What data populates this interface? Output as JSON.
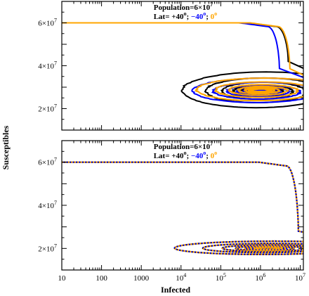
{
  "chart_data": [
    {
      "type": "line",
      "panel": "top",
      "xscale": "log",
      "yscale": "linear",
      "xlim": [
        10,
        12000000
      ],
      "ylim": [
        10000000,
        70000000
      ],
      "annotation": {
        "population_label": "Population=6×10",
        "population_exp": "7",
        "lat_prefix": "Lat=  +40",
        "deg": "o",
        "sep1": ";  ",
        "lat_minus": "−40",
        "sep2": ";  ",
        "lat_zero": "0"
      },
      "series": [
        {
          "name": "+40°",
          "color": "#000000",
          "s0": 60000000,
          "peak": 5000000,
          "center": [
            1000000,
            28000000
          ],
          "spread": 4.2,
          "ampY": 9500000,
          "seed": 1
        },
        {
          "name": "−40°",
          "color": "#0000ff",
          "s0": 60000000,
          "peak": 3000000,
          "center": [
            1000000,
            28000000
          ],
          "spread": 3.6,
          "ampY": 6500000,
          "seed": 2
        },
        {
          "name": "0°",
          "color": "#ffa500",
          "s0": 60000000,
          "peak": 5500000,
          "center": [
            1000000,
            28500000
          ],
          "spread": 3.4,
          "ampY": 6000000,
          "seed": 3
        }
      ]
    },
    {
      "type": "line",
      "panel": "bottom",
      "xscale": "log",
      "yscale": "linear",
      "xlim": [
        10,
        12000000
      ],
      "ylim": [
        10000000,
        70000000
      ],
      "annotation": {
        "population_label": "Population=6×10",
        "population_exp": "7",
        "lat_prefix": "Lat=  +40",
        "deg": "o",
        "sep1": ";  ",
        "lat_minus": "−40",
        "sep2": ";  ",
        "lat_zero": "0"
      },
      "series": [
        {
          "name": "+40°",
          "color": "#000000",
          "s0": 60000000,
          "peak": 9000000,
          "center": [
            1500000,
            20000000
          ],
          "spread": 5.0,
          "ampY": 3500000
        },
        {
          "name": "−40°",
          "color": "#0000ff",
          "s0": 60000000,
          "peak": 9000000,
          "center": [
            1500000,
            20000000
          ],
          "spread": 5.0,
          "ampY": 3500000
        },
        {
          "name": "0°",
          "color": "#ffa500",
          "s0": 60000000,
          "peak": 9000000,
          "center": [
            1500000,
            20000000
          ],
          "spread": 5.0,
          "ampY": 3500000
        }
      ]
    }
  ],
  "x_ticks": [
    {
      "label": "10",
      "value": 10
    },
    {
      "label": "100",
      "value": 100
    },
    {
      "label": "1000",
      "value": 1000
    },
    {
      "label": "10",
      "exp": "4",
      "value": 10000
    },
    {
      "label": "10",
      "exp": "5",
      "value": 100000
    },
    {
      "label": "10",
      "exp": "6",
      "value": 1000000
    },
    {
      "label": "10",
      "exp": "7",
      "value": 10000000
    }
  ],
  "y_ticks": [
    {
      "label": "2×10",
      "exp": "7",
      "value": 20000000
    },
    {
      "label": "4×10",
      "exp": "7",
      "value": 40000000
    },
    {
      "label": "6×10",
      "exp": "7",
      "value": 60000000
    }
  ],
  "xlabel": "Infected",
  "ylabel": "Susceptibles"
}
